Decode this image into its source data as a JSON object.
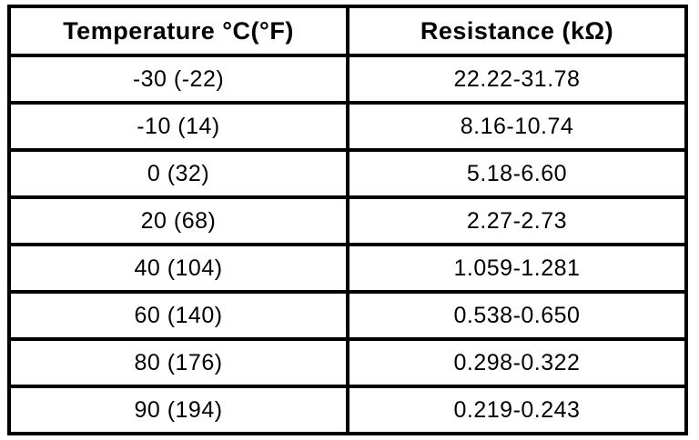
{
  "table": {
    "headers": {
      "temperature": "Temperature °C(°F)",
      "resistance": "Resistance (kΩ)"
    },
    "rows": [
      {
        "temp": "-30 (-22)",
        "res": "22.22-31.78"
      },
      {
        "temp": "-10 (14)",
        "res": "8.16-10.74"
      },
      {
        "temp": "0 (32)",
        "res": "5.18-6.60"
      },
      {
        "temp": "20 (68)",
        "res": "2.27-2.73"
      },
      {
        "temp": "40 (104)",
        "res": "1.059-1.281"
      },
      {
        "temp": "60 (140)",
        "res": "0.538-0.650"
      },
      {
        "temp": "80 (176)",
        "res": "0.298-0.322"
      },
      {
        "temp": "90 (194)",
        "res": "0.219-0.243"
      }
    ]
  },
  "colors": {
    "border": "#000000",
    "text": "#000000",
    "background": "#ffffff"
  }
}
